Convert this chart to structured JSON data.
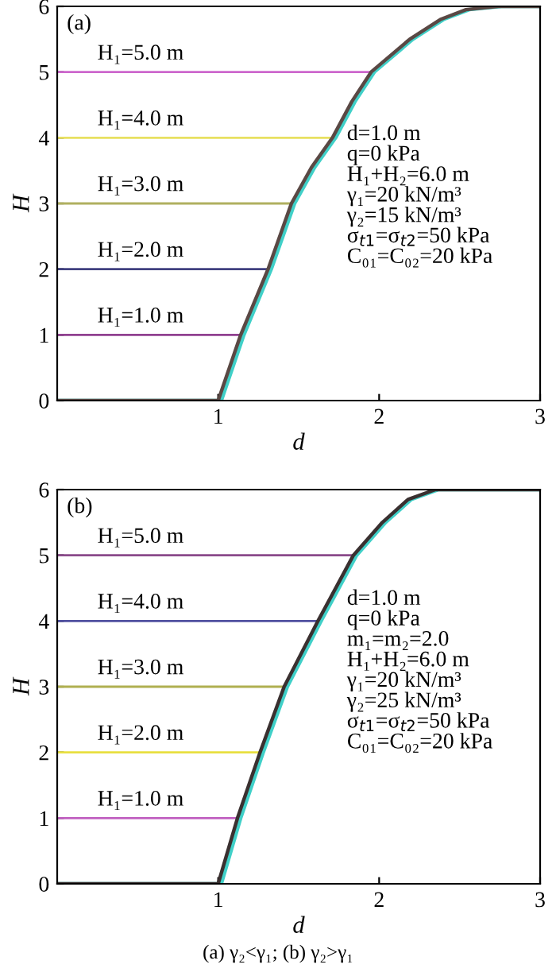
{
  "chart_data": [
    {
      "type": "line",
      "title": "(a)",
      "xlabel": "d",
      "ylabel": "H",
      "xlim": [
        0,
        3
      ],
      "ylim": [
        0,
        6
      ],
      "xticks": [
        1,
        2,
        3
      ],
      "yticks": [
        0,
        1,
        2,
        3,
        4,
        5,
        6
      ],
      "grid": false,
      "legend": false,
      "line_style": "solid",
      "marker": "none",
      "series": [
        {
          "name": "H₁=5.0 m",
          "color": "#cc66cc",
          "x": [
            0,
            1.95
          ],
          "values": [
            5,
            5
          ]
        },
        {
          "name": "H₁=4.0 m",
          "color": "#e8e060",
          "x": [
            0,
            1.71
          ],
          "values": [
            4,
            4
          ]
        },
        {
          "name": "H₁=3.0 m",
          "color": "#b0b060",
          "x": [
            0,
            1.455
          ],
          "values": [
            3,
            3
          ]
        },
        {
          "name": "H₁=2.0 m",
          "color": "#404080",
          "x": [
            0,
            1.31
          ],
          "values": [
            2,
            2
          ]
        },
        {
          "name": "H₁=1.0 m",
          "color": "#904090",
          "x": [
            0,
            1.14
          ],
          "values": [
            1,
            1
          ]
        },
        {
          "color": "#40d0c8",
          "x": [
            0,
            1.02,
            1.16,
            1.33,
            1.475,
            1.6,
            1.73,
            1.85,
            1.97,
            2.21,
            2.4,
            2.56,
            2.76,
            3
          ],
          "values": [
            0,
            0,
            1,
            2,
            3,
            3.55,
            4,
            4.55,
            5,
            5.5,
            5.8,
            5.95,
            6,
            6
          ]
        },
        {
          "color": "#5a4844",
          "x": [
            0,
            1.0,
            1.14,
            1.31,
            1.455,
            1.58,
            1.71,
            1.83,
            1.95,
            2.19,
            2.38,
            2.54,
            2.74,
            3
          ],
          "values": [
            0,
            0,
            1,
            2,
            3,
            3.55,
            4,
            4.55,
            5,
            5.5,
            5.8,
            5.95,
            6,
            6
          ]
        }
      ],
      "annotations": [
        "d=1.0 m",
        "q=0 kPa",
        "H₁+H₂=6.0 m",
        "γ₁=20 kN/m³",
        "γ₂=15 kN/m³",
        "σ$_{t1}$=σ$_{t2}$=50 kPa",
        "C₀₁=C₀₂=20 kPa"
      ]
    },
    {
      "type": "line",
      "title": "(b)",
      "subtitle": "(a) γ₂<γ₁; (b) γ₂>γ₁",
      "xlabel": "d",
      "ylabel": "H",
      "xlim": [
        0,
        3
      ],
      "ylim": [
        0,
        6
      ],
      "xticks": [
        1,
        2,
        3
      ],
      "yticks": [
        0,
        1,
        2,
        3,
        4,
        5,
        6
      ],
      "grid": false,
      "legend": false,
      "line_style": "solid",
      "marker": "none",
      "series": [
        {
          "name": "H₁=5.0 m",
          "color": "#8a4a8a",
          "x": [
            0,
            1.84
          ],
          "values": [
            5,
            5
          ]
        },
        {
          "name": "H₁=4.0 m",
          "color": "#5050a0",
          "x": [
            0,
            1.62
          ],
          "values": [
            4,
            4
          ]
        },
        {
          "name": "H₁=3.0 m",
          "color": "#b0b050",
          "x": [
            0,
            1.41
          ],
          "values": [
            3,
            3
          ]
        },
        {
          "name": "H₁=2.0 m",
          "color": "#e8e040",
          "x": [
            0,
            1.26
          ],
          "values": [
            2,
            2
          ]
        },
        {
          "name": "H₁=1.0 m",
          "color": "#c060c0",
          "x": [
            0,
            1.12
          ],
          "values": [
            1,
            1
          ]
        },
        {
          "color": "#40d0c8",
          "x": [
            0,
            1.02,
            1.14,
            1.28,
            1.43,
            1.64,
            1.86,
            2.04,
            2.2,
            2.37,
            3
          ],
          "values": [
            0,
            0,
            1,
            2,
            3,
            4,
            5,
            5.5,
            5.85,
            6,
            6
          ]
        },
        {
          "color": "#3a3030",
          "x": [
            0,
            1.0,
            1.12,
            1.26,
            1.41,
            1.62,
            1.84,
            2.02,
            2.18,
            2.35,
            3
          ],
          "values": [
            0,
            0,
            1,
            2,
            3,
            4,
            5,
            5.5,
            5.85,
            6,
            6
          ]
        }
      ],
      "annotations": [
        "d=1.0 m",
        "q=0 kPa",
        "m₁=m₂=2.0",
        "H₁+H₂=6.0 m",
        "γ₁=20 kN/m³",
        "γ₂=25 kN/m³",
        "σ$_{t1}$=σ$_{t2}$=50 kPa",
        "C₀₁=C₀₂=20 kPa"
      ]
    }
  ]
}
